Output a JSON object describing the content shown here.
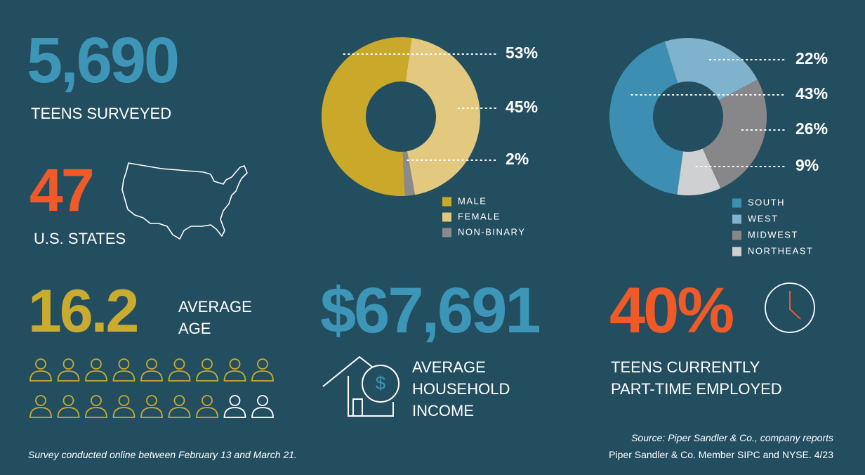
{
  "stats": {
    "teens": {
      "value": "5,690",
      "label": "TEENS SURVEYED"
    },
    "states": {
      "value": "47",
      "label": "U.S. STATES"
    },
    "age": {
      "value": "16.2",
      "label": "AVERAGE AGE"
    },
    "income": {
      "value": "$67,691",
      "label": "AVERAGE HOUSEHOLD INCOME"
    },
    "employed": {
      "value": "40%",
      "label": "TEENS CURRENTLY PART-TIME EMPLOYED"
    }
  },
  "footer": {
    "note": "Survey conducted online between February 13 and March 21.",
    "source": "Source: Piper Sandler & Co., company reports",
    "member": "Piper Sandler & Co. Member SIPC and NYSE. 4/23"
  },
  "chart_data": [
    {
      "type": "pie",
      "donut": true,
      "categories": [
        "MALE",
        "FEMALE",
        "NON-BINARY"
      ],
      "values": [
        53,
        45,
        2
      ],
      "value_labels": [
        "53%",
        "45%",
        "2%"
      ],
      "colors": [
        "#c9a82a",
        "#e2c97f",
        "#8a8a8c"
      ]
    },
    {
      "type": "pie",
      "donut": true,
      "categories": [
        "SOUTH",
        "WEST",
        "MIDWEST",
        "NORTHEAST"
      ],
      "values": [
        43,
        22,
        26,
        9
      ],
      "value_labels": [
        "43%",
        "22%",
        "26%",
        "9%"
      ],
      "colors": [
        "#3c8fb3",
        "#7fb2cc",
        "#87878a",
        "#cfd0d2"
      ]
    }
  ]
}
